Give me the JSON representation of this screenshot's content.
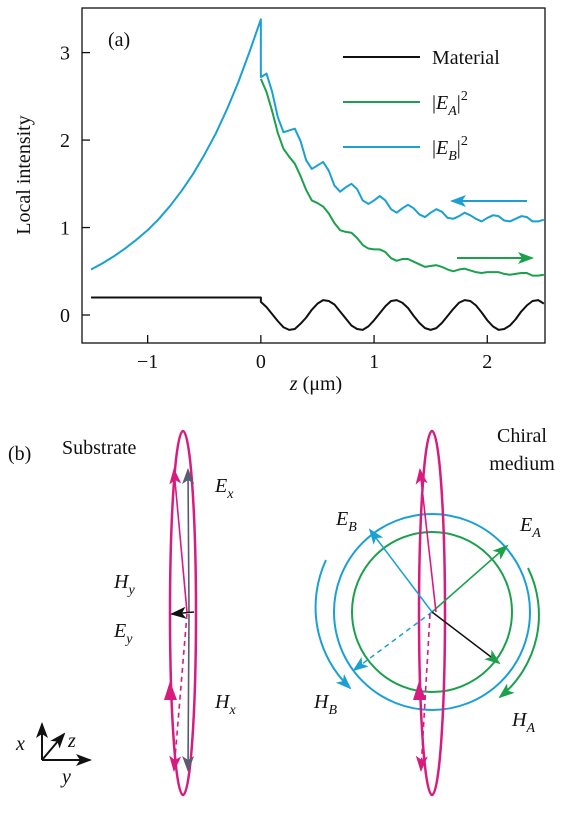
{
  "chart_data": {
    "type": "line",
    "panel_label": "(a)",
    "x_label": "z (μm)",
    "y_label": "Local intensity",
    "x": [
      -1.5,
      -1.4,
      -1.3,
      -1.2,
      -1.1,
      -1.0,
      -0.9,
      -0.8,
      -0.7,
      -0.6,
      -0.5,
      -0.4,
      -0.3,
      -0.2,
      -0.1,
      0,
      0,
      0.05,
      0.1,
      0.15,
      0.2,
      0.25,
      0.3,
      0.35,
      0.4,
      0.45,
      0.5,
      0.55,
      0.6,
      0.65,
      0.7,
      0.75,
      0.8,
      0.85,
      0.9,
      0.95,
      1.0,
      1.05,
      1.1,
      1.15,
      1.2,
      1.25,
      1.3,
      1.35,
      1.4,
      1.45,
      1.5,
      1.55,
      1.6,
      1.65,
      1.7,
      1.75,
      1.8,
      1.85,
      1.9,
      1.95,
      2.0,
      2.05,
      2.1,
      2.15,
      2.2,
      2.25,
      2.3,
      2.35,
      2.4,
      2.45,
      2.5
    ],
    "series": [
      {
        "name": "Material",
        "color": "#111111",
        "values": [
          0.2,
          0.2,
          0.2,
          0.2,
          0.2,
          0.2,
          0.2,
          0.2,
          0.2,
          0.2,
          0.2,
          0.2,
          0.2,
          0.2,
          0.2,
          0.2,
          0.15,
          0.09,
          0.01,
          -0.07,
          -0.14,
          -0.17,
          -0.16,
          -0.1,
          -0.03,
          0.06,
          0.13,
          0.17,
          0.16,
          0.12,
          0.04,
          -0.04,
          -0.12,
          -0.16,
          -0.17,
          -0.13,
          -0.06,
          0.02,
          0.1,
          0.16,
          0.17,
          0.14,
          0.08,
          -0.01,
          -0.09,
          -0.15,
          -0.17,
          -0.15,
          -0.09,
          -0.01,
          0.07,
          0.14,
          0.17,
          0.16,
          0.11,
          0.03,
          -0.06,
          -0.13,
          -0.17,
          -0.16,
          -0.12,
          -0.05,
          0.04,
          0.11,
          0.16,
          0.17,
          0.13
        ]
      },
      {
        "name": "|EA|2",
        "color": "#1ba04c",
        "values": [
          null,
          null,
          null,
          null,
          null,
          null,
          null,
          null,
          null,
          null,
          null,
          null,
          null,
          null,
          null,
          null,
          2.7,
          2.55,
          2.33,
          2.08,
          1.9,
          1.81,
          1.73,
          1.59,
          1.43,
          1.31,
          1.28,
          1.24,
          1.16,
          1.05,
          0.97,
          0.95,
          0.94,
          0.88,
          0.8,
          0.76,
          0.75,
          0.75,
          0.72,
          0.65,
          0.62,
          0.64,
          0.64,
          0.61,
          0.58,
          0.55,
          0.56,
          0.57,
          0.55,
          0.52,
          0.5,
          0.52,
          0.53,
          0.51,
          0.49,
          0.48,
          0.49,
          0.49,
          0.49,
          0.47,
          0.46,
          0.47,
          0.48,
          0.48,
          0.45,
          0.45,
          0.46
        ]
      },
      {
        "name": "|EB|2",
        "color": "#1aa0d2",
        "values": [
          0.52,
          0.59,
          0.67,
          0.76,
          0.86,
          0.97,
          1.1,
          1.25,
          1.42,
          1.61,
          1.83,
          2.07,
          2.35,
          2.66,
          3.01,
          3.38,
          2.72,
          2.76,
          2.55,
          2.26,
          2.09,
          2.11,
          2.13,
          1.99,
          1.77,
          1.67,
          1.71,
          1.75,
          1.65,
          1.48,
          1.41,
          1.46,
          1.5,
          1.44,
          1.31,
          1.27,
          1.31,
          1.36,
          1.31,
          1.21,
          1.17,
          1.22,
          1.26,
          1.22,
          1.15,
          1.12,
          1.17,
          1.21,
          1.18,
          1.11,
          1.1,
          1.13,
          1.17,
          1.14,
          1.1,
          1.07,
          1.11,
          1.14,
          1.13,
          1.08,
          1.07,
          1.1,
          1.13,
          1.12,
          1.07,
          1.07,
          1.09
        ]
      }
    ],
    "xlim": [
      -1.58,
      2.51
    ],
    "ylim": [
      -0.32,
      3.51
    ],
    "xticks": [
      {
        "value": -1,
        "label": "−1"
      },
      0,
      1,
      2
    ],
    "yticks": [
      0,
      1,
      2,
      3
    ]
  },
  "diagram": {
    "panel_label": "(b)",
    "substrate": {
      "title": "Substrate",
      "labels": [
        "Ex",
        "Hy",
        "Ey",
        "Hx"
      ]
    },
    "chiral": {
      "title": [
        "Chiral",
        "medium"
      ],
      "labels": [
        "EB",
        "EA",
        "HB",
        "HA"
      ]
    },
    "axes": [
      "x",
      "z",
      "y"
    ]
  }
}
